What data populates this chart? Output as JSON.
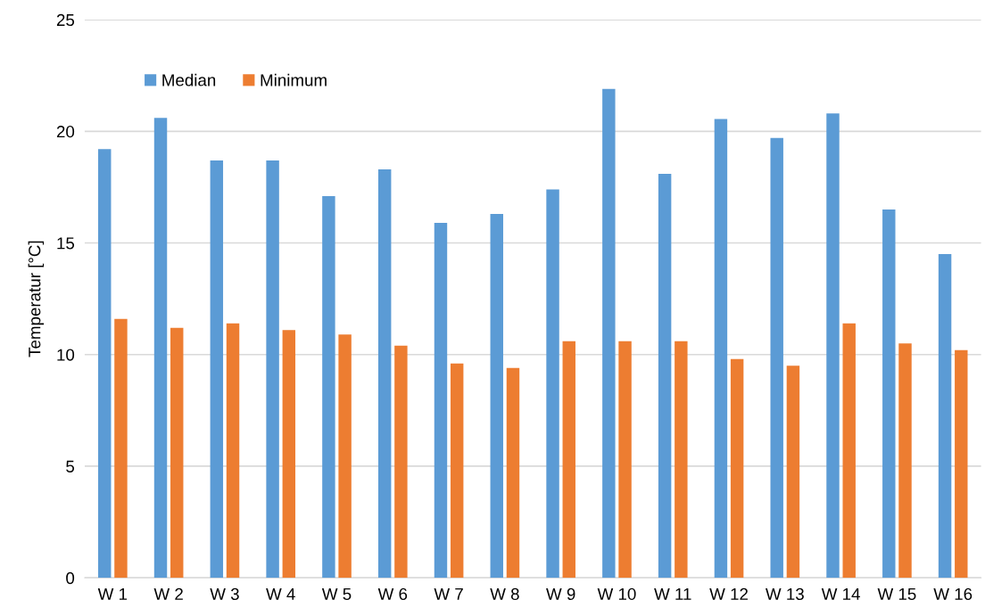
{
  "chart_data": {
    "type": "bar",
    "ylabel": "Temperatur [°C]",
    "categories": [
      "W 1",
      "W 2",
      "W 3",
      "W 4",
      "W 5",
      "W 6",
      "W 7",
      "W 8",
      "W 9",
      "W 10",
      "W 11",
      "W 12",
      "W 13",
      "W 14",
      "W 15",
      "W 16"
    ],
    "series": [
      {
        "name": "Median",
        "color": "#5b9bd5",
        "values": [
          19.2,
          20.6,
          18.7,
          18.7,
          17.1,
          18.3,
          15.9,
          16.3,
          17.4,
          21.9,
          18.1,
          20.55,
          19.7,
          20.8,
          16.5,
          14.5
        ]
      },
      {
        "name": "Minimum",
        "color": "#ed7d31",
        "values": [
          11.6,
          11.2,
          11.4,
          11.1,
          10.9,
          10.4,
          9.6,
          9.4,
          10.6,
          10.6,
          10.6,
          9.8,
          9.5,
          11.4,
          10.5,
          10.2
        ]
      }
    ],
    "ylim": [
      0,
      25
    ],
    "yticks": [
      0,
      5,
      10,
      15,
      20,
      25
    ],
    "grid": "y",
    "legend": "top left"
  }
}
